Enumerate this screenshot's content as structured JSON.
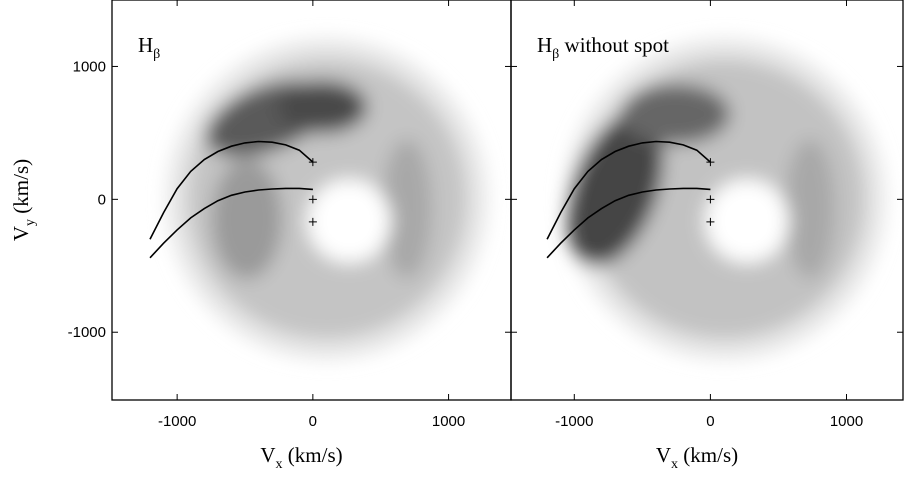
{
  "chart_data": [
    {
      "type": "doppler-map",
      "title": [
        "H",
        "β"
      ],
      "xlabel": [
        "V",
        "x",
        " (km/s)"
      ],
      "ylabel": [
        "V",
        "y",
        " (km/s)"
      ],
      "xlim": [
        -1480,
        1460
      ],
      "ylim": [
        -1510,
        1500
      ],
      "xticks": [
        -1000,
        0,
        1000
      ],
      "yticks": [
        -1000,
        0,
        1000
      ],
      "show_ytick_labels": true,
      "curves": [
        {
          "color": "#000000",
          "x": [
            -1200,
            -1100,
            -1000,
            -900,
            -800,
            -700,
            -600,
            -500,
            -400,
            -300,
            -200,
            -100,
            0
          ],
          "y": [
            -300,
            -100,
            80,
            210,
            300,
            360,
            400,
            425,
            435,
            430,
            410,
            370,
            280
          ]
        },
        {
          "color": "#000000",
          "x": [
            -1200,
            -1100,
            -1000,
            -900,
            -800,
            -700,
            -600,
            -500,
            -400,
            -300,
            -200,
            -100,
            0
          ],
          "y": [
            -440,
            -330,
            -230,
            -140,
            -70,
            -10,
            30,
            55,
            70,
            78,
            82,
            82,
            75
          ]
        }
      ],
      "markers": {
        "x": [
          0,
          0,
          0
        ],
        "y": [
          280,
          0,
          -170
        ]
      }
    },
    {
      "type": "doppler-map",
      "title": [
        "H",
        "β",
        " without spot"
      ],
      "xlabel": [
        "V",
        "x",
        " (km/s)"
      ],
      "xlim": [
        -1465,
        1415
      ],
      "ylim": [
        -1510,
        1500
      ],
      "xticks": [
        -1000,
        0,
        1000
      ],
      "yticks": [
        -1000,
        0,
        1000
      ],
      "show_ytick_labels": false,
      "curves": [
        {
          "color": "#000000",
          "x": [
            -1200,
            -1100,
            -1000,
            -900,
            -800,
            -700,
            -600,
            -500,
            -400,
            -300,
            -200,
            -100,
            0
          ],
          "y": [
            -300,
            -100,
            80,
            210,
            300,
            360,
            400,
            425,
            435,
            430,
            410,
            370,
            280
          ]
        },
        {
          "color": "#000000",
          "x": [
            -1200,
            -1100,
            -1000,
            -900,
            -800,
            -700,
            -600,
            -500,
            -400,
            -300,
            -200,
            -100,
            0
          ],
          "y": [
            -440,
            -330,
            -230,
            -140,
            -70,
            -10,
            30,
            55,
            70,
            78,
            82,
            82,
            75
          ]
        }
      ],
      "markers": {
        "x": [
          0,
          0,
          0
        ],
        "y": [
          280,
          0,
          -170
        ]
      }
    }
  ]
}
